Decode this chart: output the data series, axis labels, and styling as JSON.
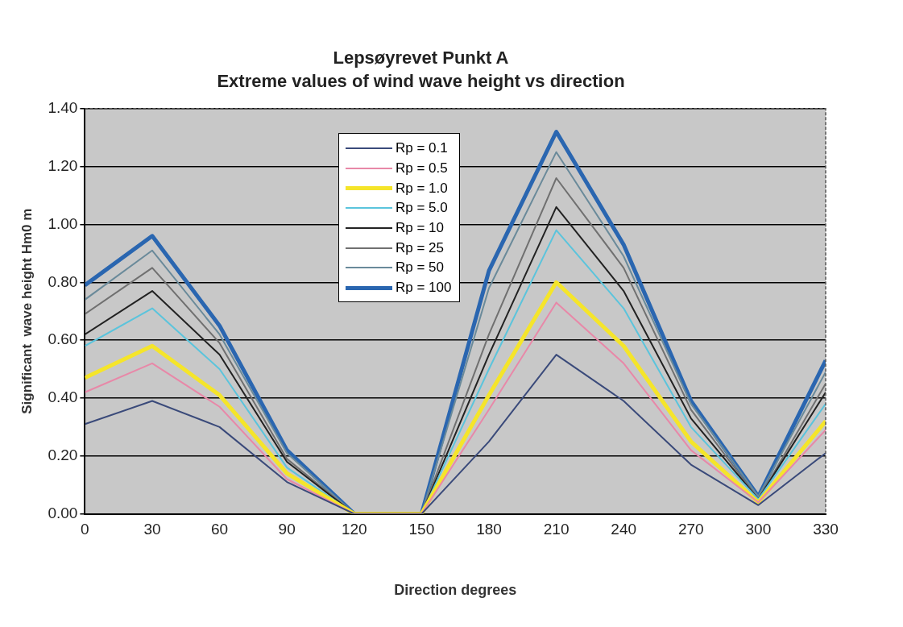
{
  "chart_data": {
    "type": "line",
    "title": "Lepsøyrevet Punkt A",
    "subtitle": "Extreme values of wind wave height vs direction",
    "xlabel": "Direction degrees",
    "ylabel": "Significant  wave height Hm0 m",
    "x": [
      0,
      30,
      60,
      90,
      120,
      150,
      180,
      210,
      240,
      270,
      300,
      330
    ],
    "xlim": [
      0,
      330
    ],
    "xticks": [
      0,
      30,
      60,
      90,
      120,
      150,
      180,
      210,
      240,
      270,
      300,
      330
    ],
    "ylim": [
      0,
      1.4
    ],
    "yticks": [
      {
        "value": 0,
        "label": "0.00"
      },
      {
        "value": 0.2,
        "label": "0.20"
      },
      {
        "value": 0.4,
        "label": "0.40"
      },
      {
        "value": 0.6,
        "label": "0.60"
      },
      {
        "value": 0.8,
        "label": "0.80"
      },
      {
        "value": 1.0,
        "label": "1.00"
      },
      {
        "value": 1.2,
        "label": "1.20"
      },
      {
        "value": 1.4,
        "label": "1.40"
      }
    ],
    "grid": "y",
    "legend": "top",
    "marker": "none",
    "series": [
      {
        "name": "Rp = 0.1",
        "color": "#3a4a7a",
        "values": [
          0.31,
          0.39,
          0.3,
          0.11,
          0,
          0,
          0.25,
          0.55,
          0.39,
          0.17,
          0.03,
          0.21
        ]
      },
      {
        "name": "Rp = 0.5",
        "color": "#e888a8",
        "values": [
          0.42,
          0.52,
          0.37,
          0.12,
          0,
          0,
          0.36,
          0.73,
          0.52,
          0.22,
          0.04,
          0.29
        ]
      },
      {
        "name": "Rp = 1.0",
        "color": "#f5e52a",
        "values": [
          0.47,
          0.58,
          0.41,
          0.14,
          0,
          0,
          0.41,
          0.8,
          0.58,
          0.25,
          0.04,
          0.32
        ]
      },
      {
        "name": "Rp = 5.0",
        "color": "#5bc4dc",
        "values": [
          0.58,
          0.71,
          0.5,
          0.16,
          0,
          0,
          0.5,
          0.98,
          0.71,
          0.3,
          0.05,
          0.38
        ]
      },
      {
        "name": "Rp = 10",
        "color": "#222222",
        "values": [
          0.62,
          0.77,
          0.55,
          0.18,
          0,
          0,
          0.55,
          1.06,
          0.77,
          0.33,
          0.05,
          0.42
        ]
      },
      {
        "name": "Rp = 25",
        "color": "#707070",
        "values": [
          0.69,
          0.85,
          0.59,
          0.19,
          0,
          0,
          0.62,
          1.16,
          0.85,
          0.36,
          0.05,
          0.45
        ]
      },
      {
        "name": "Rp = 50",
        "color": "#6a8a9a",
        "values": [
          0.74,
          0.91,
          0.62,
          0.21,
          0,
          0,
          0.78,
          1.25,
          0.89,
          0.38,
          0.06,
          0.49
        ]
      },
      {
        "name": "Rp = 100",
        "color": "#2a66b0",
        "values": [
          0.79,
          0.96,
          0.65,
          0.22,
          0,
          0,
          0.84,
          1.32,
          0.93,
          0.39,
          0.06,
          0.53
        ]
      }
    ]
  }
}
